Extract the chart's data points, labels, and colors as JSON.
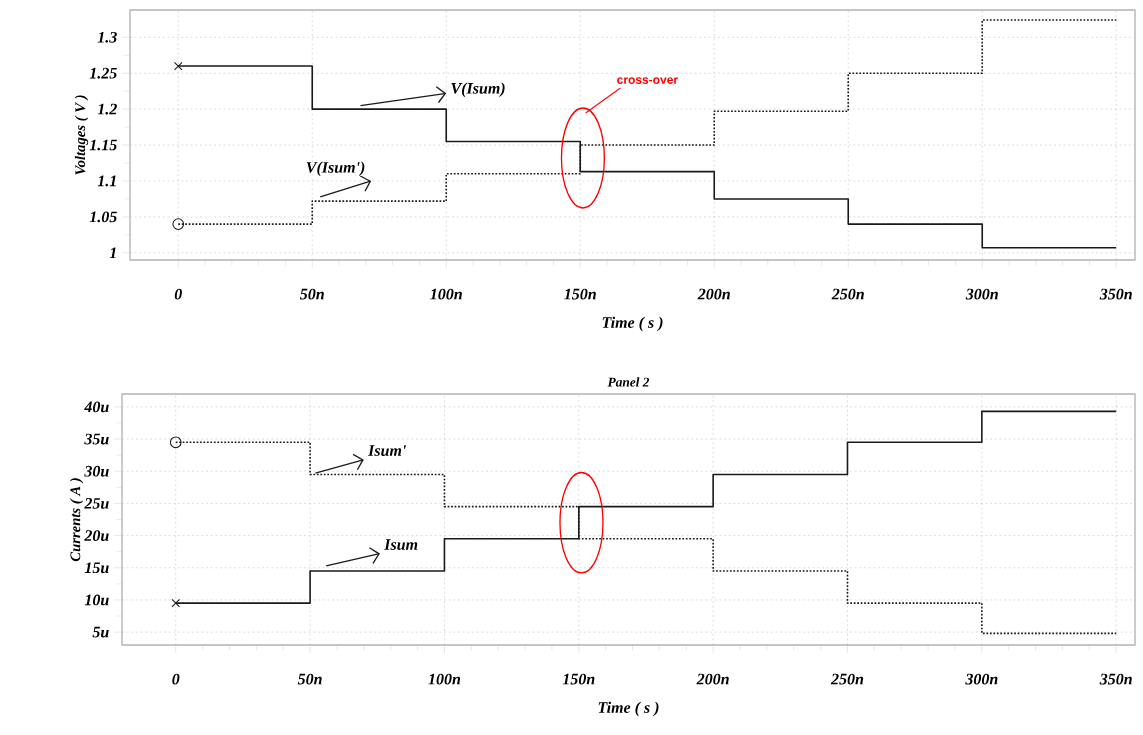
{
  "chart_data": [
    {
      "type": "step",
      "xlabel": "Time ( s )",
      "ylabel": "Voltages ( V )",
      "x": [
        0,
        50,
        100,
        150,
        200,
        250,
        300,
        350
      ],
      "series": [
        {
          "name": "V(Isum)",
          "color": "#1a1a1a",
          "line_style": "solid",
          "values": [
            1.26,
            1.2,
            1.155,
            1.113,
            1.075,
            1.04,
            1.007,
            1.007
          ]
        },
        {
          "name": "V(Isum')",
          "color": "#1a1a1a",
          "line_style": "dotted",
          "values": [
            1.04,
            1.072,
            1.11,
            1.15,
            1.197,
            1.25,
            1.324,
            1.324
          ]
        }
      ],
      "xlim": [
        -18,
        357
      ],
      "ylim": [
        0.99,
        1.338
      ],
      "xticks": [
        0,
        {
          "value": 50,
          "label": "50n"
        },
        {
          "value": 100,
          "label": "100n"
        },
        {
          "value": 150,
          "label": "150n"
        },
        {
          "value": 200,
          "label": "200n"
        },
        {
          "value": 250,
          "label": "250n"
        },
        {
          "value": 300,
          "label": "300n"
        },
        {
          "value": 350,
          "label": "350n"
        }
      ],
      "yticks": [
        1,
        1.05,
        1.1,
        1.15,
        1.2,
        1.25,
        1.3
      ],
      "grid": true,
      "annotations": [
        "cross-over"
      ]
    },
    {
      "type": "step",
      "title": "Panel 2",
      "xlabel": "Time ( s )",
      "ylabel": "Currents ( A )",
      "x": [
        0,
        50,
        100,
        150,
        200,
        250,
        300,
        350
      ],
      "series": [
        {
          "name": "Isum",
          "color": "#1a1a1a",
          "line_style": "solid",
          "values": [
            9.5,
            14.5,
            19.5,
            24.5,
            29.5,
            34.5,
            39.3,
            39.3
          ]
        },
        {
          "name": "Isum'",
          "color": "#1a1a1a",
          "line_style": "dotted",
          "values": [
            34.5,
            29.5,
            24.5,
            19.5,
            14.5,
            9.5,
            4.8,
            4.8
          ]
        }
      ],
      "xlim": [
        -20,
        357
      ],
      "ylim": [
        3,
        42
      ],
      "xticks": [
        0,
        {
          "value": 50,
          "label": "50n"
        },
        {
          "value": 100,
          "label": "100n"
        },
        {
          "value": 150,
          "label": "150n"
        },
        {
          "value": 200,
          "label": "200n"
        },
        {
          "value": 250,
          "label": "250n"
        },
        {
          "value": 300,
          "label": "300n"
        },
        {
          "value": 350,
          "label": "350n"
        }
      ],
      "yticks": [
        {
          "value": 5,
          "label": "5u"
        },
        {
          "value": 10,
          "label": "10u"
        },
        {
          "value": 15,
          "label": "15u"
        },
        {
          "value": 20,
          "label": "20u"
        },
        {
          "value": 25,
          "label": "25u"
        },
        {
          "value": 30,
          "label": "30u"
        },
        {
          "value": 35,
          "label": "35u"
        },
        {
          "value": 40,
          "label": "40u"
        }
      ],
      "grid": true
    }
  ]
}
